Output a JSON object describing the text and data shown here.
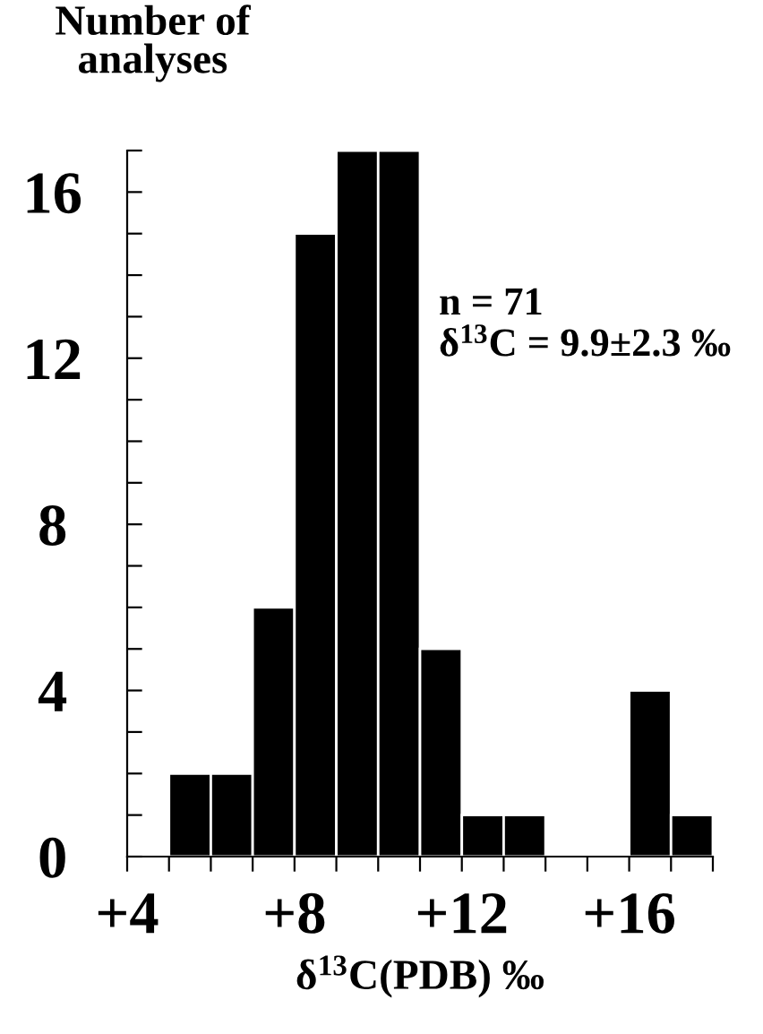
{
  "chart_data": {
    "type": "histogram",
    "ylabel": "Number of\nanalyses",
    "xlabel": "δ$^{13}$C(PDB) ‰",
    "bins": [
      5,
      6,
      7,
      8,
      9,
      10,
      11,
      12,
      13,
      14,
      15,
      16,
      17,
      18
    ],
    "values": [
      2,
      2,
      6,
      15,
      17,
      17,
      5,
      1,
      1,
      0,
      0,
      4,
      1
    ],
    "color": "#000000",
    "xlim": [
      4,
      18
    ],
    "xticks": [
      {
        "value": 4,
        "label": "+4"
      },
      {
        "value": 5,
        "label": null
      },
      {
        "value": 6,
        "label": null
      },
      {
        "value": 7,
        "label": null
      },
      {
        "value": 8,
        "label": "+8"
      },
      {
        "value": 9,
        "label": null
      },
      {
        "value": 10,
        "label": null
      },
      {
        "value": 11,
        "label": null
      },
      {
        "value": 12,
        "label": "+12"
      },
      {
        "value": 13,
        "label": null
      },
      {
        "value": 14,
        "label": null
      },
      {
        "value": 15,
        "label": null
      },
      {
        "value": 16,
        "label": "+16"
      },
      {
        "value": 17,
        "label": null
      },
      {
        "value": 18,
        "label": null
      }
    ],
    "ylim": [
      0,
      17
    ],
    "yticks": [
      0,
      {
        "value": 1,
        "label": null
      },
      {
        "value": 2,
        "label": null
      },
      {
        "value": 3,
        "label": null
      },
      4,
      {
        "value": 5,
        "label": null
      },
      {
        "value": 6,
        "label": null
      },
      {
        "value": 7,
        "label": null
      },
      8,
      {
        "value": 9,
        "label": null
      },
      {
        "value": 10,
        "label": null
      },
      {
        "value": 11,
        "label": null
      },
      12,
      {
        "value": 13,
        "label": null
      },
      {
        "value": 14,
        "label": null
      },
      {
        "value": 15,
        "label": null
      },
      16,
      {
        "value": 17,
        "label": null
      }
    ],
    "annotations": [
      "n = 71",
      "δ$^{13}$C = 9.9±2.3 ‰"
    ],
    "grid": false
  }
}
